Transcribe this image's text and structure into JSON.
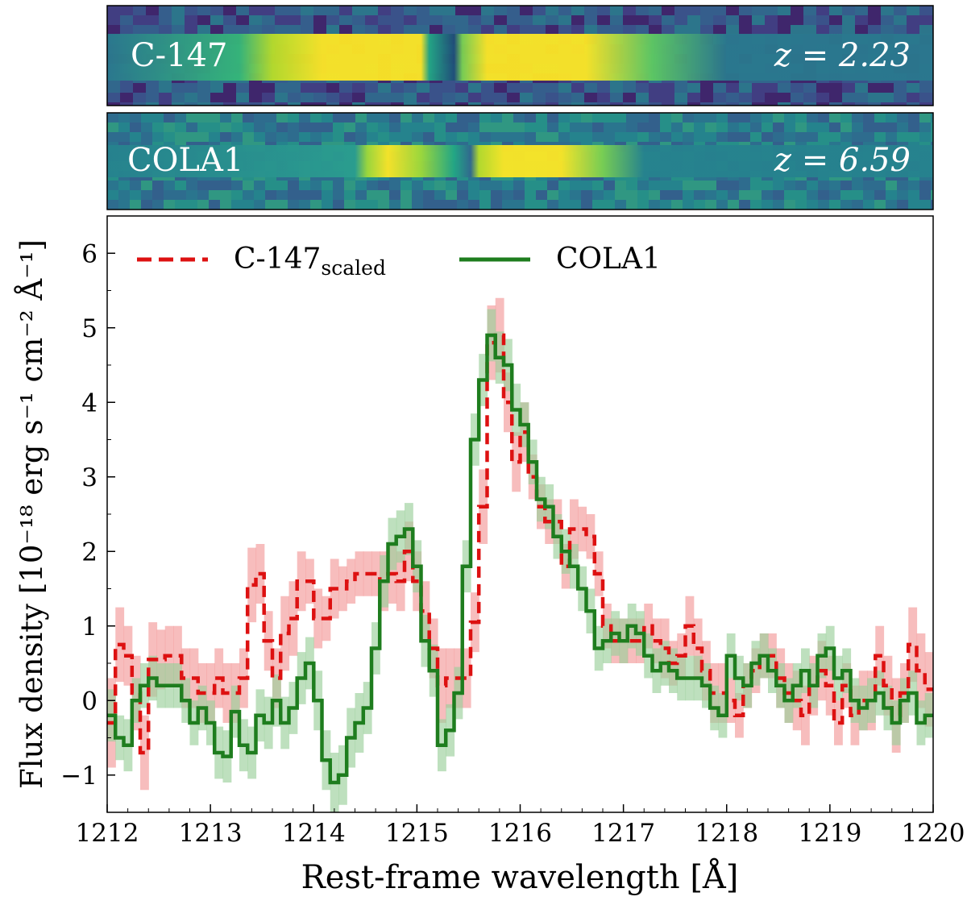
{
  "chart_data": {
    "type": "line",
    "panels": [
      {
        "label": "C-147",
        "redshift_label": "z = 2.23"
      },
      {
        "label": "COLA1",
        "redshift_label": "z = 6.59"
      }
    ],
    "xlabel": "Rest-frame wavelength [Å]",
    "ylabel": "Flux density [10⁻¹⁸ erg s⁻¹ cm⁻² Å⁻¹]",
    "xlim": [
      1212,
      1220
    ],
    "ylim": [
      -1.5,
      6.5
    ],
    "xticks": [
      1212,
      1213,
      1214,
      1215,
      1216,
      1217,
      1218,
      1219,
      1220
    ],
    "yticks": [
      -1,
      0,
      1,
      2,
      3,
      4,
      5,
      6
    ],
    "legend_position": "top-left",
    "colors": {
      "C-147_scaled": "#dd1111",
      "COLA1": "#1e7d1e",
      "C-147_band": "#f29a9a",
      "COLA1_band": "#9bd09b"
    },
    "series": [
      {
        "name": "C-147",
        "legend_sub": "scaled",
        "style": "dashed-step",
        "x": [
          1212.0,
          1212.08,
          1212.16,
          1212.24,
          1212.32,
          1212.4,
          1212.48,
          1212.56,
          1212.64,
          1212.72,
          1212.8,
          1212.88,
          1212.96,
          1213.04,
          1213.12,
          1213.2,
          1213.28,
          1213.36,
          1213.44,
          1213.52,
          1213.6,
          1213.68,
          1213.76,
          1213.84,
          1213.92,
          1214.0,
          1214.08,
          1214.16,
          1214.24,
          1214.32,
          1214.4,
          1214.48,
          1214.56,
          1214.64,
          1214.72,
          1214.8,
          1214.88,
          1214.96,
          1215.04,
          1215.12,
          1215.2,
          1215.28,
          1215.36,
          1215.44,
          1215.52,
          1215.6,
          1215.68,
          1215.76,
          1215.84,
          1215.92,
          1216.0,
          1216.08,
          1216.16,
          1216.24,
          1216.32,
          1216.4,
          1216.48,
          1216.56,
          1216.64,
          1216.72,
          1216.8,
          1216.88,
          1216.96,
          1217.04,
          1217.12,
          1217.2,
          1217.28,
          1217.36,
          1217.44,
          1217.52,
          1217.6,
          1217.68,
          1217.76,
          1217.84,
          1217.92,
          1218.0,
          1218.08,
          1218.16,
          1218.24,
          1218.32,
          1218.4,
          1218.48,
          1218.56,
          1218.64,
          1218.72,
          1218.8,
          1218.88,
          1218.96,
          1219.04,
          1219.12,
          1219.2,
          1219.28,
          1219.36,
          1219.44,
          1219.52,
          1219.6,
          1219.68,
          1219.76,
          1219.84,
          1219.92
        ],
        "values": [
          -0.3,
          0.75,
          0.6,
          0.1,
          -0.7,
          0.55,
          0.55,
          0.6,
          0.6,
          0.3,
          0.3,
          0.1,
          0.1,
          0.3,
          0.1,
          0.1,
          0.3,
          1.55,
          1.7,
          0.8,
          0.3,
          0.9,
          1.1,
          1.6,
          1.6,
          1.1,
          1.1,
          1.5,
          1.5,
          1.6,
          1.7,
          1.7,
          1.7,
          1.6,
          1.7,
          1.6,
          2.0,
          1.6,
          1.2,
          0.7,
          0.2,
          0.3,
          0.3,
          0.3,
          1.05,
          2.6,
          4.8,
          4.9,
          4.0,
          3.2,
          3.6,
          3.0,
          2.6,
          2.4,
          2.4,
          1.8,
          2.3,
          2.3,
          2.2,
          1.7,
          1.0,
          0.8,
          0.8,
          0.8,
          0.8,
          1.0,
          0.8,
          0.7,
          0.5,
          0.6,
          1.0,
          0.7,
          0.4,
          0.1,
          0.1,
          0.0,
          -0.2,
          0.2,
          0.4,
          0.6,
          0.6,
          0.3,
          0.1,
          0.0,
          -0.2,
          0.2,
          0.4,
          0.2,
          -0.3,
          0.2,
          -0.2,
          0.0,
          0.0,
          0.6,
          0.2,
          -0.2,
          0.1,
          0.75,
          0.4,
          0.15
        ],
        "errors": [
          0.6,
          0.5,
          0.4,
          0.5,
          0.5,
          0.5,
          0.4,
          0.4,
          0.4,
          0.4,
          0.4,
          0.4,
          0.4,
          0.4,
          0.4,
          0.4,
          0.4,
          0.5,
          0.4,
          0.4,
          0.4,
          0.5,
          0.5,
          0.4,
          0.3,
          0.4,
          0.3,
          0.4,
          0.3,
          0.3,
          0.3,
          0.3,
          0.3,
          0.4,
          0.4,
          0.4,
          0.4,
          0.4,
          0.4,
          0.4,
          0.5,
          0.4,
          0.4,
          0.4,
          0.4,
          0.5,
          0.5,
          0.5,
          0.4,
          0.4,
          0.4,
          0.3,
          0.3,
          0.3,
          0.3,
          0.3,
          0.4,
          0.3,
          0.3,
          0.3,
          0.3,
          0.3,
          0.3,
          0.3,
          0.3,
          0.3,
          0.3,
          0.4,
          0.3,
          0.3,
          0.4,
          0.4,
          0.4,
          0.4,
          0.4,
          0.3,
          0.3,
          0.3,
          0.3,
          0.3,
          0.3,
          0.4,
          0.4,
          0.4,
          0.4,
          0.4,
          0.4,
          0.4,
          0.3,
          0.3,
          0.4,
          0.4,
          0.4,
          0.4,
          0.4,
          0.5,
          0.4,
          0.5,
          0.5,
          0.5
        ]
      },
      {
        "name": "COLA1",
        "style": "solid-step",
        "x": [
          1212.0,
          1212.08,
          1212.16,
          1212.24,
          1212.32,
          1212.4,
          1212.48,
          1212.56,
          1212.64,
          1212.72,
          1212.8,
          1212.88,
          1212.96,
          1213.04,
          1213.12,
          1213.2,
          1213.28,
          1213.36,
          1213.44,
          1213.52,
          1213.6,
          1213.68,
          1213.76,
          1213.84,
          1213.92,
          1214.0,
          1214.08,
          1214.16,
          1214.24,
          1214.32,
          1214.4,
          1214.48,
          1214.56,
          1214.64,
          1214.72,
          1214.8,
          1214.88,
          1214.96,
          1215.04,
          1215.12,
          1215.2,
          1215.28,
          1215.36,
          1215.44,
          1215.52,
          1215.6,
          1215.68,
          1215.76,
          1215.84,
          1215.92,
          1216.0,
          1216.08,
          1216.16,
          1216.24,
          1216.32,
          1216.4,
          1216.48,
          1216.56,
          1216.64,
          1216.72,
          1216.8,
          1216.88,
          1216.96,
          1217.04,
          1217.12,
          1217.2,
          1217.28,
          1217.36,
          1217.44,
          1217.52,
          1217.6,
          1217.68,
          1217.76,
          1217.84,
          1217.92,
          1218.0,
          1218.08,
          1218.16,
          1218.24,
          1218.32,
          1218.4,
          1218.48,
          1218.56,
          1218.64,
          1218.72,
          1218.8,
          1218.88,
          1218.96,
          1219.04,
          1219.12,
          1219.2,
          1219.28,
          1219.36,
          1219.44,
          1219.52,
          1219.6,
          1219.68,
          1219.76,
          1219.84,
          1219.92
        ],
        "values": [
          -0.2,
          -0.5,
          -0.6,
          0.0,
          0.2,
          0.3,
          0.2,
          0.2,
          0.2,
          0.0,
          -0.3,
          -0.1,
          -0.3,
          -0.7,
          -0.75,
          -0.15,
          -0.6,
          -0.7,
          -0.2,
          -0.3,
          0.0,
          -0.3,
          -0.1,
          0.3,
          0.5,
          0.0,
          -0.8,
          -1.1,
          -1.0,
          -0.5,
          -0.3,
          -0.1,
          0.7,
          1.6,
          2.1,
          2.2,
          2.3,
          1.8,
          0.8,
          0.4,
          -0.6,
          -0.4,
          0.1,
          1.8,
          3.5,
          4.3,
          4.9,
          4.6,
          4.5,
          3.9,
          3.7,
          3.2,
          2.7,
          2.6,
          2.2,
          2.0,
          1.8,
          1.5,
          1.2,
          0.7,
          0.8,
          0.9,
          0.8,
          1.0,
          0.9,
          0.6,
          0.4,
          0.5,
          0.4,
          0.3,
          0.3,
          0.3,
          0.2,
          -0.1,
          -0.2,
          0.6,
          0.3,
          0.2,
          0.5,
          0.6,
          0.4,
          0.2,
          0.0,
          0.2,
          0.4,
          0.2,
          0.6,
          0.7,
          0.3,
          0.4,
          0.0,
          -0.1,
          0.0,
          0.1,
          -0.1,
          -0.3,
          0.0,
          0.1,
          -0.3,
          -0.2
        ],
        "errors": [
          0.35,
          0.3,
          0.35,
          0.3,
          0.3,
          0.3,
          0.3,
          0.3,
          0.3,
          0.3,
          0.3,
          0.3,
          0.3,
          0.35,
          0.35,
          0.35,
          0.35,
          0.35,
          0.35,
          0.35,
          0.35,
          0.35,
          0.35,
          0.35,
          0.35,
          0.4,
          0.4,
          0.4,
          0.4,
          0.4,
          0.4,
          0.35,
          0.35,
          0.35,
          0.35,
          0.35,
          0.35,
          0.35,
          0.35,
          0.35,
          0.35,
          0.35,
          0.35,
          0.35,
          0.35,
          0.35,
          0.35,
          0.35,
          0.35,
          0.35,
          0.3,
          0.3,
          0.3,
          0.3,
          0.3,
          0.3,
          0.3,
          0.3,
          0.3,
          0.3,
          0.3,
          0.3,
          0.3,
          0.3,
          0.3,
          0.3,
          0.3,
          0.3,
          0.3,
          0.3,
          0.3,
          0.3,
          0.3,
          0.3,
          0.3,
          0.3,
          0.3,
          0.3,
          0.3,
          0.3,
          0.3,
          0.3,
          0.3,
          0.3,
          0.3,
          0.3,
          0.3,
          0.3,
          0.3,
          0.3,
          0.3,
          0.3,
          0.3,
          0.3,
          0.3,
          0.3,
          0.3,
          0.3,
          0.3,
          0.3
        ]
      }
    ]
  }
}
